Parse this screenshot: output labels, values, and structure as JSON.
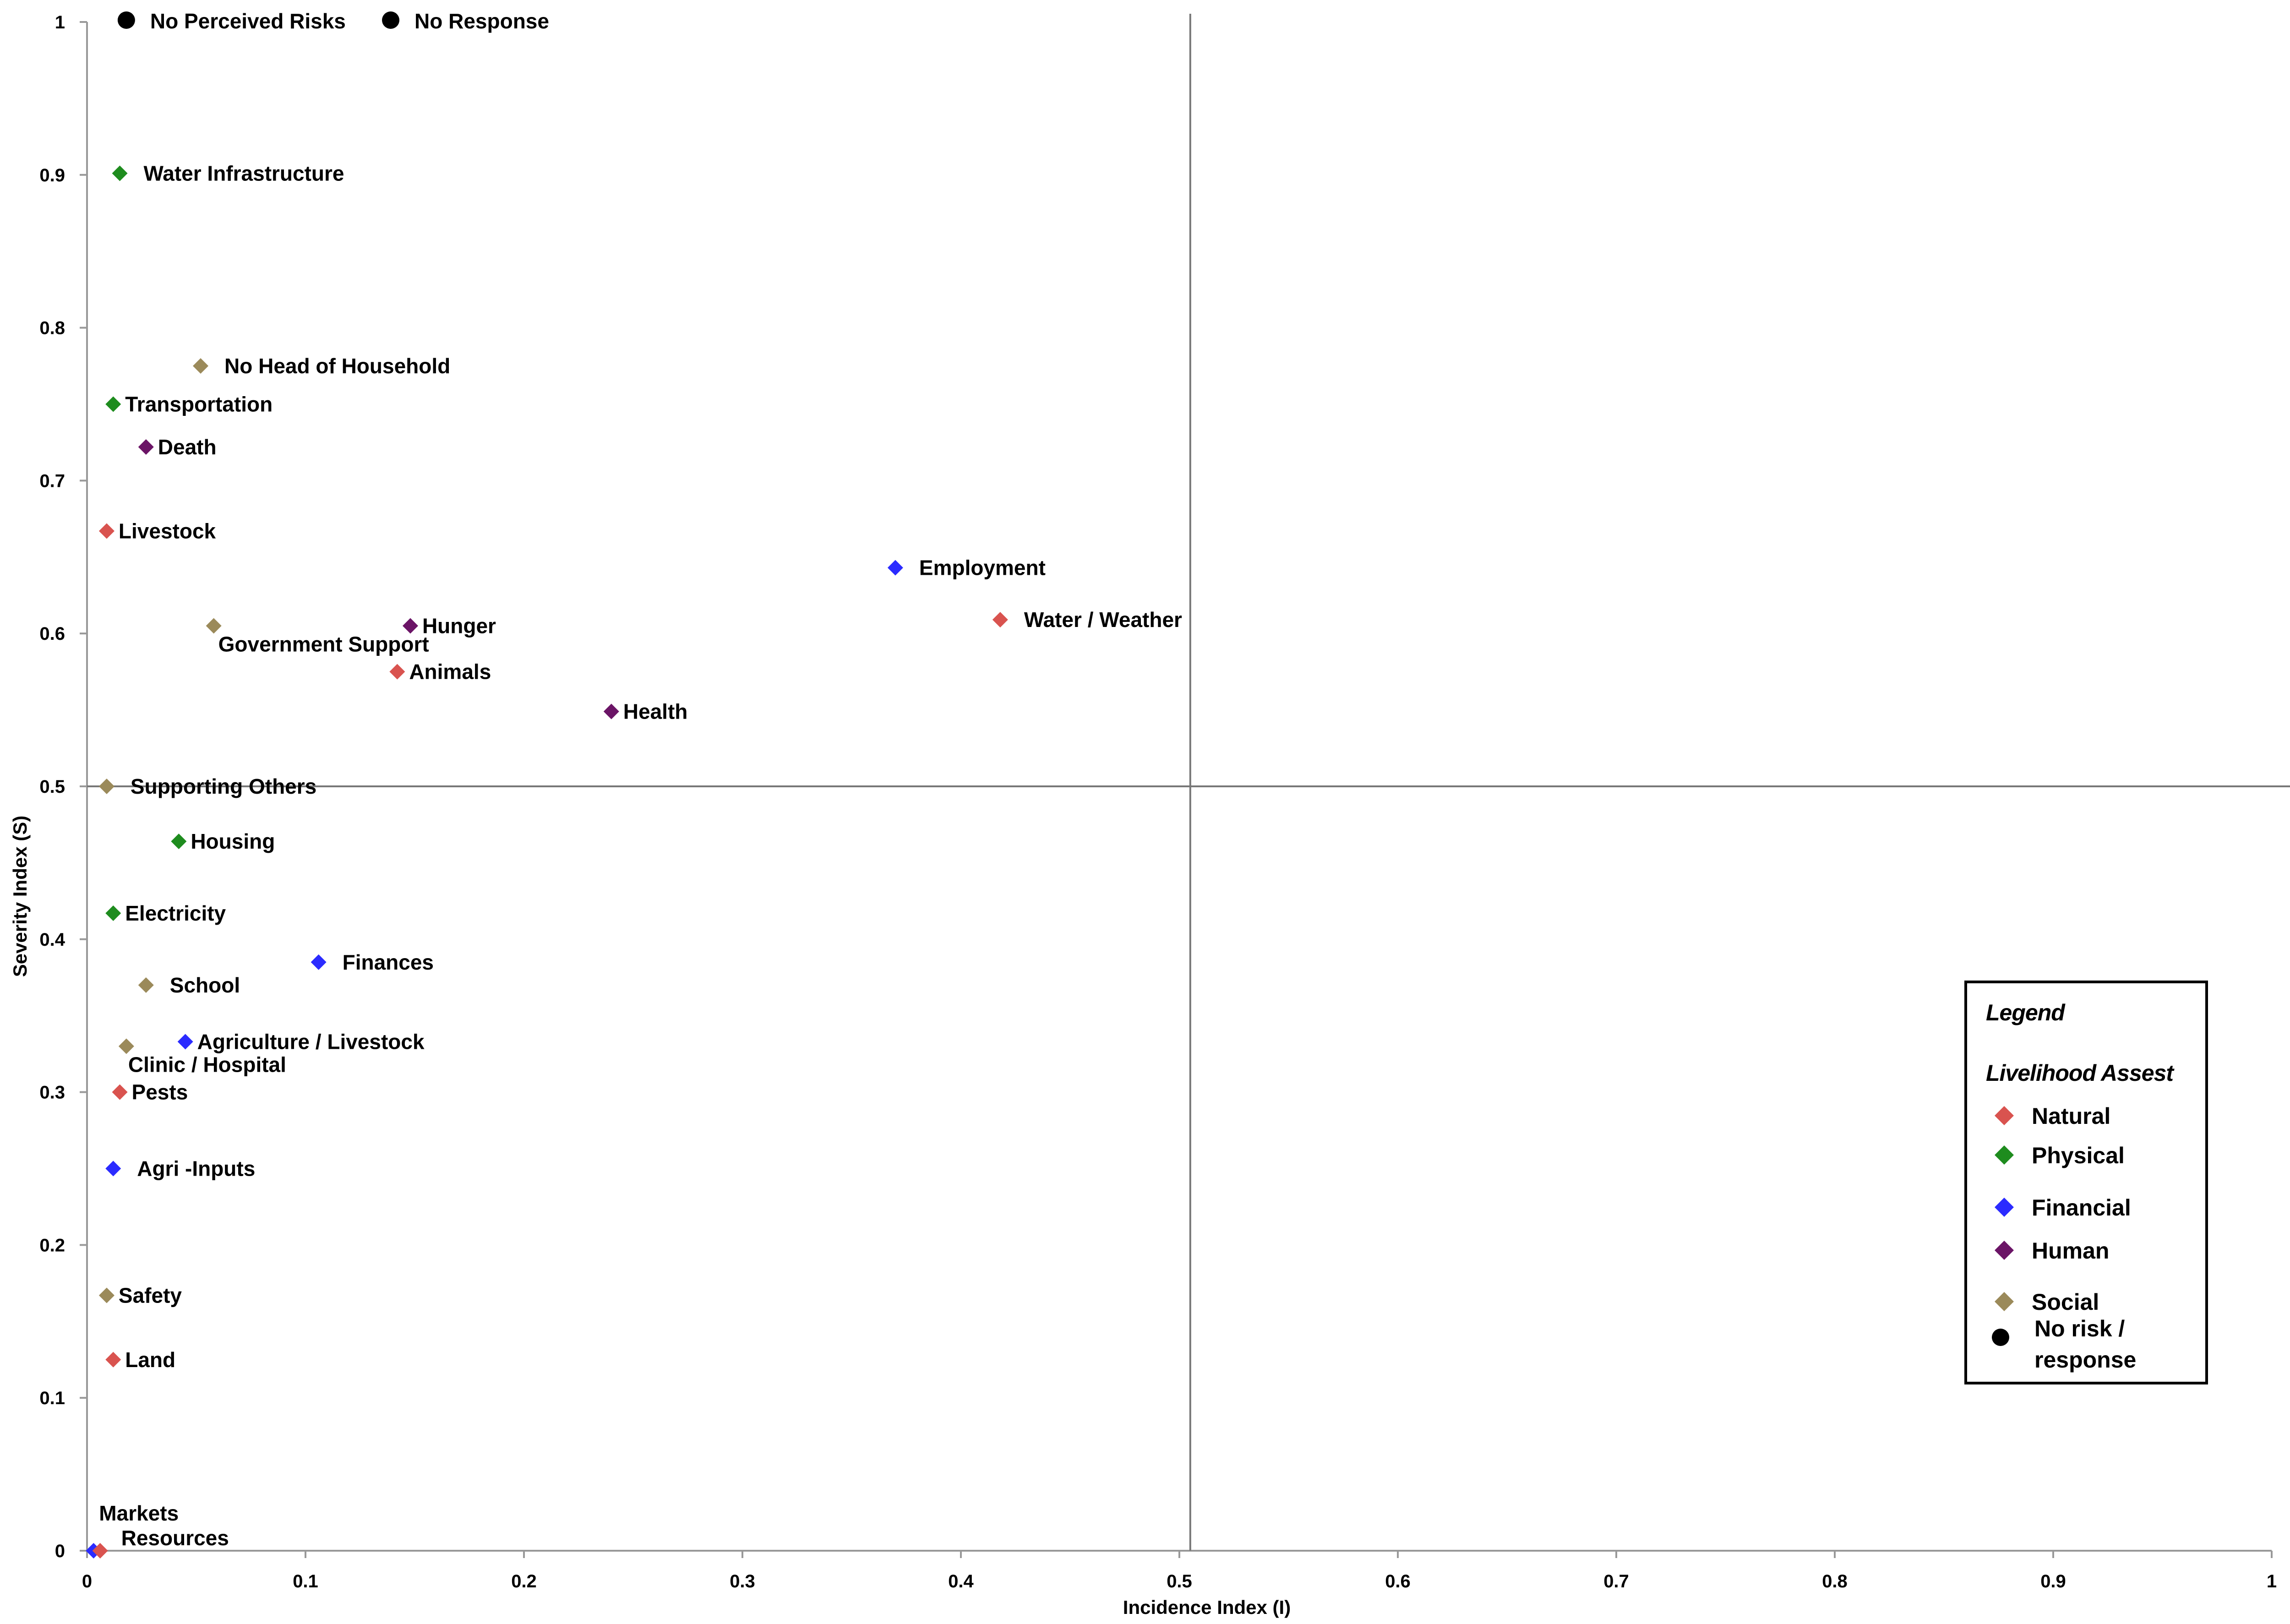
{
  "chart_data": {
    "type": "scatter",
    "title": "",
    "xlabel": "Incidence Index (I)",
    "ylabel": "Severity Index (S)",
    "xlim": [
      0,
      1
    ],
    "ylim": [
      0,
      1
    ],
    "xticks": [
      "0",
      "0.1",
      "0.2",
      "0.3",
      "0.4",
      "0.5",
      "0.6",
      "0.7",
      "0.8",
      "0.9",
      "1"
    ],
    "yticks": [
      "0",
      "0.1",
      "0.2",
      "0.3",
      "0.4",
      "0.5",
      "0.6",
      "0.7",
      "0.8",
      "0.9",
      "1"
    ],
    "grid": false,
    "reference_lines": {
      "x": 0.505,
      "y": 0.5
    },
    "legend": {
      "placement": "lower-right",
      "title": "Legend",
      "subtitle": "Livelihood Assest",
      "entries": [
        {
          "category": "Natural",
          "label": "Natural",
          "marker": "diamond"
        },
        {
          "category": "Physical",
          "label": "Physical",
          "marker": "diamond"
        },
        {
          "category": "Financial",
          "label": "Financial",
          "marker": "diamond"
        },
        {
          "category": "Human",
          "label": "Human",
          "marker": "diamond"
        },
        {
          "category": "Social",
          "label": "Social",
          "marker": "diamond"
        },
        {
          "category": "none",
          "label": "No risk / response",
          "lines": [
            "No risk /",
            "response"
          ],
          "marker": "circle"
        }
      ]
    },
    "colors": {
      "Natural": "#d9534f",
      "Physical": "#1e8c1e",
      "Financial": "#2b2bff",
      "Human": "#6b1466",
      "Social": "#9b8a5a",
      "none": "#000000"
    },
    "points": [
      {
        "label": "No Perceived Risks",
        "category": "none",
        "x": 0.018,
        "y": 1.0
      },
      {
        "label": "No Response",
        "category": "none",
        "x": 0.139,
        "y": 1.0
      },
      {
        "label": "Water Infrastructure",
        "category": "Physical",
        "x": 0.015,
        "y": 0.901
      },
      {
        "label": "No Head of Household",
        "category": "Social",
        "x": 0.052,
        "y": 0.775
      },
      {
        "label": "Transportation",
        "category": "Physical",
        "x": 0.012,
        "y": 0.75
      },
      {
        "label": "Death",
        "category": "Human",
        "x": 0.027,
        "y": 0.722
      },
      {
        "label": "Livestock",
        "category": "Natural",
        "x": 0.009,
        "y": 0.667
      },
      {
        "label": "Employment",
        "category": "Financial",
        "x": 0.37,
        "y": 0.643
      },
      {
        "label": "Water / Weather",
        "category": "Natural",
        "x": 0.418,
        "y": 0.609
      },
      {
        "label": "Hunger",
        "category": "Human",
        "x": 0.148,
        "y": 0.605
      },
      {
        "label": "Government Support",
        "category": "Social",
        "x": 0.058,
        "y": 0.605
      },
      {
        "label": "Animals",
        "category": "Natural",
        "x": 0.142,
        "y": 0.575
      },
      {
        "label": "Health",
        "category": "Human",
        "x": 0.24,
        "y": 0.549
      },
      {
        "label": "Supporting Others",
        "category": "Social",
        "x": 0.009,
        "y": 0.5
      },
      {
        "label": "Housing",
        "category": "Physical",
        "x": 0.042,
        "y": 0.464
      },
      {
        "label": "Electricity",
        "category": "Physical",
        "x": 0.012,
        "y": 0.417
      },
      {
        "label": "Finances",
        "category": "Financial",
        "x": 0.106,
        "y": 0.385
      },
      {
        "label": "School",
        "category": "Social",
        "x": 0.027,
        "y": 0.37
      },
      {
        "label": "Agriculture / Livestock",
        "category": "Financial",
        "x": 0.045,
        "y": 0.333
      },
      {
        "label": "Clinic / Hospital",
        "category": "Social",
        "x": 0.018,
        "y": 0.33
      },
      {
        "label": "Pests",
        "category": "Natural",
        "x": 0.015,
        "y": 0.3
      },
      {
        "label": "Agri -Inputs",
        "category": "Financial",
        "x": 0.012,
        "y": 0.25
      },
      {
        "label": "Safety",
        "category": "Social",
        "x": 0.009,
        "y": 0.167
      },
      {
        "label": "Land",
        "category": "Natural",
        "x": 0.012,
        "y": 0.125
      },
      {
        "label": "Markets",
        "category": "Financial",
        "x": 0.003,
        "y": 0.0
      },
      {
        "label": "Resources",
        "category": "Natural",
        "x": 0.006,
        "y": 0.0
      }
    ]
  }
}
